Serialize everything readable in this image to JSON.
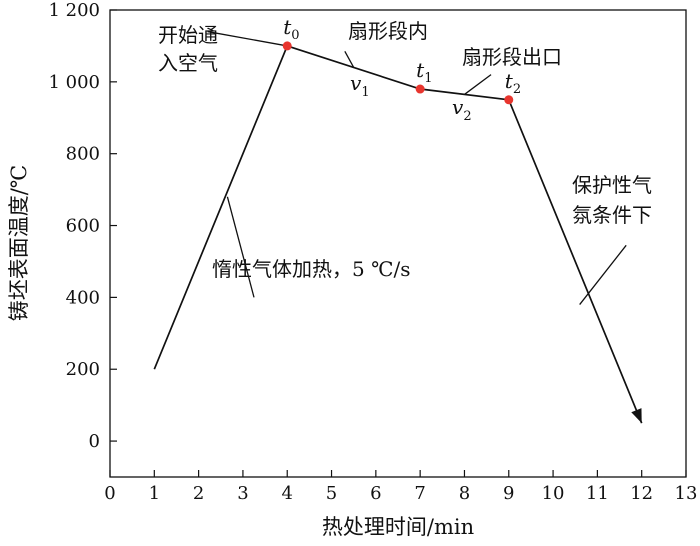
{
  "chart_data": {
    "type": "line",
    "xlabel": "热处理时间/min",
    "ylabel": "铸坯表面温度/℃",
    "xlim": [
      0,
      13
    ],
    "ylim": [
      -100,
      1200
    ],
    "x_ticks": [
      0,
      1,
      2,
      3,
      4,
      5,
      6,
      7,
      8,
      9,
      10,
      11,
      12,
      13
    ],
    "x_tick_labels": [
      "0",
      "1",
      "2",
      "3",
      "4",
      "5",
      "6",
      "7",
      "8",
      "9",
      "10",
      "11",
      "12",
      "13"
    ],
    "y_ticks": [
      0,
      200,
      400,
      600,
      800,
      1000,
      1200
    ],
    "y_tick_labels": [
      "0",
      "200",
      "400",
      "600",
      "800",
      "1 000",
      "1 200"
    ],
    "grid": false,
    "series": [
      {
        "x": [
          1,
          4,
          7,
          9,
          12
        ],
        "y": [
          200,
          1100,
          980,
          950,
          50
        ]
      }
    ],
    "key_points": [
      {
        "label": "t",
        "sub": "0",
        "x": 4,
        "y": 1100
      },
      {
        "label": "t",
        "sub": "1",
        "x": 7,
        "y": 980
      },
      {
        "label": "t",
        "sub": "2",
        "x": 9,
        "y": 950
      }
    ],
    "rates": [
      {
        "label": "v",
        "sub": "1"
      },
      {
        "label": "v",
        "sub": "2"
      }
    ],
    "annotations": {
      "start_gas_line1": "开始通",
      "start_gas_line2": "入空气",
      "fan_inner": "扇形段内",
      "fan_exit": "扇形段出口",
      "inert_heating": "惰性气体加热，5 ℃/s",
      "protect_line1": "保护性气",
      "protect_line2": "氛条件下"
    },
    "colors": {
      "line": "#111111",
      "marker": "#e8352e"
    }
  }
}
